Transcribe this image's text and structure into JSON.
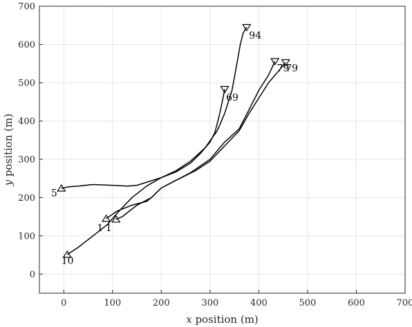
{
  "chart_data": {
    "type": "line",
    "xlabel_var": "x",
    "xlabel_rest": " position (m)",
    "ylabel_var": "y",
    "ylabel_rest": " position (m)",
    "xlim": [
      -50,
      700
    ],
    "ylim": [
      -50,
      700
    ],
    "xticks": [
      0,
      100,
      200,
      300,
      400,
      500,
      600,
      700
    ],
    "yticks": [
      0,
      100,
      200,
      300,
      400,
      500,
      600,
      700
    ],
    "grid": true,
    "series": [
      {
        "start_label": "5",
        "end_label": "69",
        "points": [
          [
            -5,
            224
          ],
          [
            10,
            228
          ],
          [
            30,
            230
          ],
          [
            60,
            234
          ],
          [
            100,
            232
          ],
          [
            130,
            230
          ],
          [
            150,
            232
          ],
          [
            170,
            240
          ],
          [
            200,
            252
          ],
          [
            230,
            267
          ],
          [
            260,
            290
          ],
          [
            280,
            315
          ],
          [
            300,
            345
          ],
          [
            310,
            370
          ],
          [
            318,
            410
          ],
          [
            325,
            450
          ],
          [
            330,
            483
          ]
        ]
      },
      {
        "start_label": "10",
        "end_label": "94",
        "points": [
          [
            7,
            51
          ],
          [
            30,
            70
          ],
          [
            60,
            100
          ],
          [
            90,
            130
          ],
          [
            110,
            160
          ],
          [
            140,
            200
          ],
          [
            170,
            230
          ],
          [
            200,
            252
          ],
          [
            230,
            270
          ],
          [
            260,
            295
          ],
          [
            290,
            330
          ],
          [
            315,
            375
          ],
          [
            330,
            420
          ],
          [
            345,
            480
          ],
          [
            355,
            550
          ],
          [
            362,
            600
          ],
          [
            368,
            630
          ],
          [
            375,
            645
          ]
        ]
      },
      {
        "start_label": "1",
        "end_label": "79",
        "points": [
          [
            87,
            145
          ],
          [
            110,
            165
          ],
          [
            140,
            180
          ],
          [
            170,
            190
          ],
          [
            180,
            200
          ],
          [
            200,
            225
          ],
          [
            230,
            245
          ],
          [
            270,
            270
          ],
          [
            300,
            295
          ],
          [
            330,
            335
          ],
          [
            360,
            375
          ],
          [
            380,
            420
          ],
          [
            400,
            460
          ],
          [
            420,
            500
          ],
          [
            440,
            530
          ],
          [
            455,
            553
          ]
        ]
      },
      {
        "start_label": "1",
        "end_label": "79",
        "points": [
          [
            107,
            143
          ],
          [
            120,
            150
          ],
          [
            150,
            180
          ],
          [
            180,
            200
          ],
          [
            200,
            225
          ],
          [
            230,
            245
          ],
          [
            260,
            265
          ],
          [
            300,
            300
          ],
          [
            330,
            345
          ],
          [
            360,
            380
          ],
          [
            380,
            430
          ],
          [
            400,
            480
          ],
          [
            420,
            520
          ],
          [
            433,
            556
          ]
        ]
      }
    ],
    "labels": [
      {
        "text": "5",
        "x": -26,
        "y": 203
      },
      {
        "text": "10",
        "x": -5,
        "y": 27
      },
      {
        "text": "1",
        "x": 68,
        "y": 112
      },
      {
        "text": "1",
        "x": 86,
        "y": 112
      },
      {
        "text": "69",
        "x": 333,
        "y": 453
      },
      {
        "text": "94",
        "x": 380,
        "y": 615
      },
      {
        "text": "79",
        "x": 437,
        "y": 530
      },
      {
        "text": "79",
        "x": 455,
        "y": 530
      }
    ]
  }
}
